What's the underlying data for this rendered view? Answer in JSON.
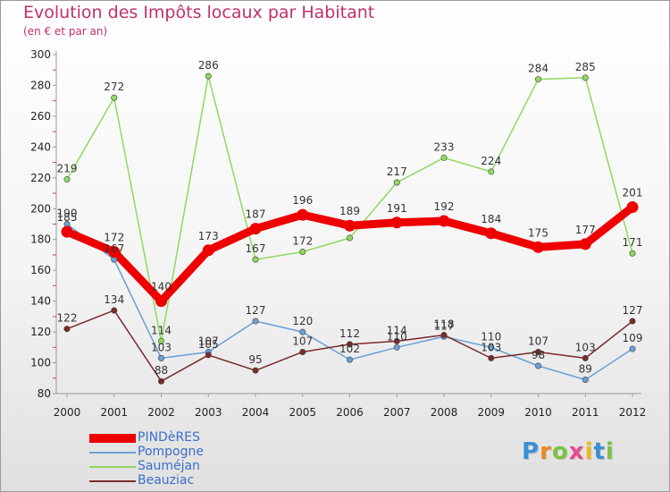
{
  "header": {
    "title": "Evolution des Impôts locaux par Habitant",
    "subtitle": "(en € et par an)"
  },
  "logo": {
    "text": "Proxiti",
    "letter_colors": [
      "#3a8fd6",
      "#e8891f",
      "#7dc242",
      "#e84a8a",
      "#f2b71c",
      "#3a8fd6",
      "#7dc242"
    ]
  },
  "chart_data": {
    "type": "line",
    "title": "Evolution des Impôts locaux par Habitant",
    "subtitle": "(en € et par an)",
    "xlabel": "",
    "ylabel": "",
    "x": [
      "2000",
      "2001",
      "2002",
      "2003",
      "2004",
      "2005",
      "2006",
      "2007",
      "2008",
      "2009",
      "2010",
      "2011",
      "2012"
    ],
    "ylim": [
      80,
      300
    ],
    "yticks": [
      80,
      100,
      120,
      140,
      160,
      180,
      200,
      220,
      240,
      260,
      280,
      300
    ],
    "grid": false,
    "legend_position": "bottom-left",
    "series": [
      {
        "name": "Sauméjan",
        "color": "#90d860",
        "values": [
          219,
          272,
          114,
          286,
          167,
          172,
          181,
          217,
          233,
          224,
          284,
          285,
          171
        ]
      },
      {
        "name": "Pompogne",
        "color": "#6aa0d4",
        "values": [
          190,
          167,
          103,
          107,
          127,
          120,
          102,
          110,
          117,
          110,
          98,
          89,
          109
        ]
      },
      {
        "name": "Beauziac",
        "color": "#7a2a2a",
        "values": [
          122,
          134,
          88,
          105,
          95,
          107,
          112,
          114,
          118,
          103,
          107,
          103,
          127
        ]
      },
      {
        "name": "PINDèRES",
        "color": "#ee0000",
        "values": [
          185,
          172,
          140,
          173,
          187,
          196,
          189,
          191,
          192,
          184,
          175,
          177,
          201
        ]
      }
    ],
    "data_labels": {
      "Sauméjan": [
        "219",
        "272",
        "114",
        "286",
        "167",
        "172",
        "",
        "217",
        "233",
        "224",
        "284",
        "285",
        "171"
      ],
      "Pompogne": [
        "190",
        "167",
        "103",
        "107",
        "127",
        "120",
        "102",
        "110",
        "117",
        "110",
        "98",
        "89",
        "109"
      ],
      "Beauziac": [
        "122",
        "134",
        "88",
        "105",
        "95",
        "107",
        "112",
        "114",
        "118",
        "103",
        "107",
        "103",
        "127"
      ],
      "PINDèRES": [
        "185",
        "172",
        "140",
        "173",
        "187",
        "196",
        "189",
        "191",
        "192",
        "184",
        "175",
        "177",
        "201"
      ]
    },
    "legend_order": [
      "PINDèRES",
      "Pompogne",
      "Sauméjan",
      "Beauziac"
    ]
  }
}
